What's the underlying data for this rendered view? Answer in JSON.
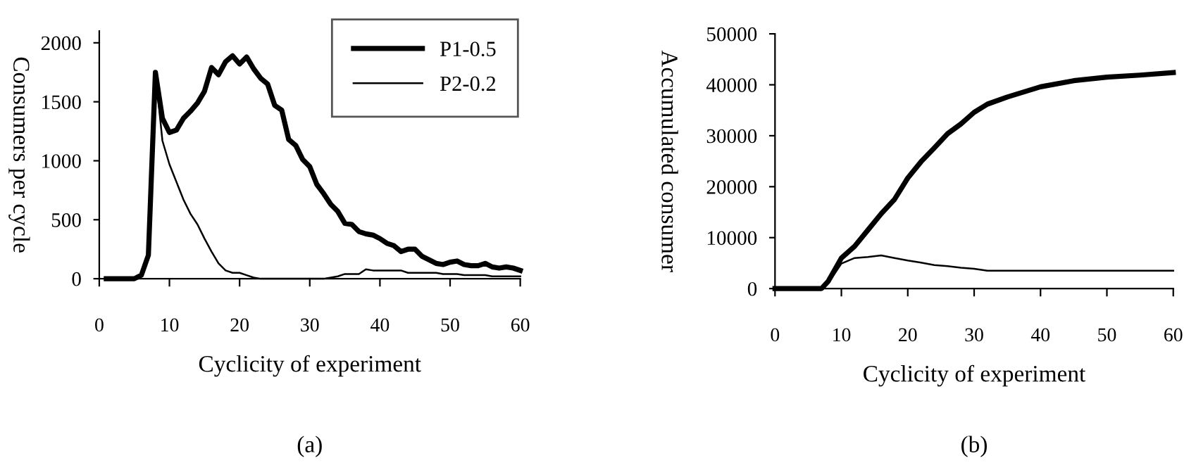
{
  "chart_data": [
    {
      "type": "line",
      "xlabel": "Cyclicity of experiment",
      "ylabel": "Consumers per cycle",
      "annotations": [
        "(a)"
      ],
      "xlim": [
        0,
        60
      ],
      "ylim": [
        0,
        2100
      ],
      "xticks": [
        0,
        10,
        20,
        30,
        40,
        50,
        60
      ],
      "yticks": [
        0,
        500,
        1000,
        1500,
        2000
      ],
      "legend": "top right",
      "grid": false,
      "marker": "none",
      "line_style": "solid",
      "x": [
        1,
        2,
        3,
        4,
        5,
        6,
        7,
        8,
        9,
        10,
        11,
        12,
        13,
        14,
        15,
        16,
        17,
        18,
        19,
        20,
        21,
        22,
        23,
        24,
        25,
        26,
        27,
        28,
        29,
        30,
        31,
        32,
        33,
        34,
        35,
        36,
        37,
        38,
        39,
        40,
        41,
        42,
        43,
        44,
        45,
        46,
        47,
        48,
        49,
        50,
        51,
        52,
        53,
        54,
        55,
        56,
        57,
        58,
        59,
        60
      ],
      "series": [
        {
          "name": "P1-0.5",
          "color": "#000000",
          "values": [
            0,
            0,
            0,
            0,
            0,
            30,
            200,
            1750,
            1360,
            1240,
            1260,
            1360,
            1420,
            1490,
            1590,
            1790,
            1730,
            1840,
            1890,
            1820,
            1880,
            1780,
            1700,
            1650,
            1470,
            1430,
            1180,
            1130,
            1010,
            950,
            800,
            720,
            630,
            570,
            470,
            460,
            400,
            380,
            370,
            340,
            300,
            280,
            230,
            250,
            250,
            190,
            160,
            130,
            120,
            140,
            150,
            120,
            110,
            110,
            130,
            100,
            90,
            100,
            90,
            70
          ]
        },
        {
          "name": "P2-0.2",
          "color": "#000000",
          "values": [
            0,
            0,
            0,
            0,
            0,
            30,
            200,
            1750,
            1170,
            970,
            820,
            670,
            550,
            460,
            340,
            230,
            130,
            70,
            50,
            50,
            30,
            10,
            0,
            0,
            0,
            0,
            0,
            0,
            0,
            0,
            0,
            0,
            10,
            20,
            40,
            40,
            40,
            80,
            70,
            70,
            70,
            70,
            70,
            50,
            50,
            50,
            50,
            50,
            40,
            40,
            40,
            30,
            30,
            30,
            30,
            20,
            20,
            20,
            20,
            20
          ]
        }
      ]
    },
    {
      "type": "line",
      "xlabel": "Cyclicity of experiment",
      "ylabel": "Accumulated consumer",
      "annotations": [
        "(b)"
      ],
      "xlim": [
        0,
        60
      ],
      "ylim": [
        0,
        50000
      ],
      "xticks": [
        0,
        10,
        20,
        30,
        40,
        50,
        60
      ],
      "yticks": [
        0,
        10000,
        20000,
        30000,
        40000,
        50000
      ],
      "legend": false,
      "grid": false,
      "marker": "none",
      "line_style": "solid",
      "x": [
        0,
        7,
        8,
        10,
        12,
        14,
        16,
        18,
        20,
        22,
        24,
        26,
        28,
        30,
        32,
        35,
        40,
        45,
        50,
        55,
        60
      ],
      "series": [
        {
          "color": "#000000",
          "values": [
            0,
            0,
            1400,
            6000,
            8300,
            11500,
            14700,
            17500,
            21700,
            24900,
            27600,
            30400,
            32300,
            34600,
            36200,
            37600,
            39600,
            40800,
            41500,
            41900,
            42400
          ]
        },
        {
          "color": "#000000",
          "values": [
            0,
            0,
            1000,
            4900,
            6000,
            6200,
            6500,
            6000,
            5500,
            5100,
            4600,
            4400,
            4100,
            3900,
            3500,
            3500,
            3500,
            3500,
            3500,
            3500,
            3500
          ]
        }
      ]
    }
  ]
}
